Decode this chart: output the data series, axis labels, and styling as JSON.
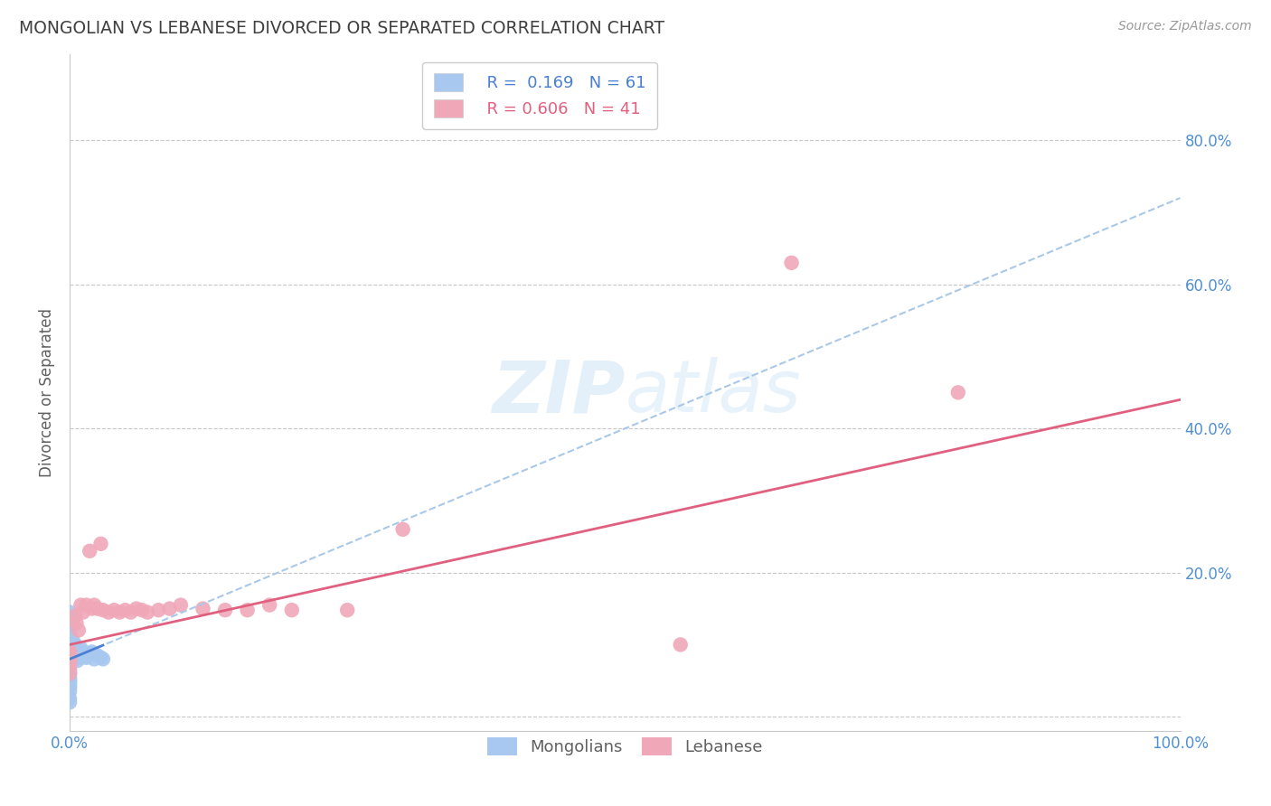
{
  "title": "MONGOLIAN VS LEBANESE DIVORCED OR SEPARATED CORRELATION CHART",
  "source": "Source: ZipAtlas.com",
  "ylabel": "Divorced or Separated",
  "xlim": [
    0.0,
    1.0
  ],
  "ylim": [
    -0.02,
    0.92
  ],
  "xticks": [
    0.0,
    0.2,
    0.4,
    0.6,
    0.8,
    1.0
  ],
  "yticks": [
    0.0,
    0.2,
    0.4,
    0.6,
    0.8
  ],
  "xticklabels": [
    "0.0%",
    "",
    "",
    "",
    "",
    "100.0%"
  ],
  "yticklabels_right": [
    "",
    "20.0%",
    "40.0%",
    "60.0%",
    "80.0%"
  ],
  "watermark": "ZIPatlas",
  "legend_r1": "R =  0.169",
  "legend_n1": "N = 61",
  "legend_r2": "R = 0.606",
  "legend_n2": "N = 41",
  "color_mongolian": "#a8c8f0",
  "color_lebanese": "#f0a8b8",
  "color_line_mongolian": "#4a7fd4",
  "color_line_lebanese": "#e06080",
  "color_dashed": "#aac8e8",
  "background_color": "#ffffff",
  "grid_color": "#c8c8c8",
  "title_color": "#404040",
  "axis_tick_color": "#5090d0",
  "mongolian_x": [
    0.0,
    0.0,
    0.0,
    0.0,
    0.0,
    0.0,
    0.0,
    0.0,
    0.0,
    0.0,
    0.0,
    0.0,
    0.0,
    0.0,
    0.0,
    0.0,
    0.0,
    0.0,
    0.0,
    0.0,
    0.0,
    0.0,
    0.0,
    0.0,
    0.0,
    0.0,
    0.0,
    0.0,
    0.0,
    0.0,
    0.0,
    0.0,
    0.0,
    0.0,
    0.0,
    0.003,
    0.003,
    0.004,
    0.004,
    0.005,
    0.005,
    0.006,
    0.006,
    0.007,
    0.008,
    0.009,
    0.01,
    0.01,
    0.011,
    0.012,
    0.013,
    0.014,
    0.015,
    0.016,
    0.018,
    0.02,
    0.022,
    0.025,
    0.028,
    0.03,
    0.0
  ],
  "mongolian_y": [
    0.145,
    0.14,
    0.13,
    0.125,
    0.12,
    0.115,
    0.11,
    0.108,
    0.105,
    0.103,
    0.1,
    0.098,
    0.095,
    0.093,
    0.09,
    0.088,
    0.085,
    0.083,
    0.08,
    0.078,
    0.075,
    0.073,
    0.07,
    0.065,
    0.062,
    0.06,
    0.055,
    0.052,
    0.05,
    0.048,
    0.045,
    0.042,
    0.04,
    0.035,
    0.025,
    0.105,
    0.095,
    0.09,
    0.085,
    0.1,
    0.092,
    0.088,
    0.082,
    0.078,
    0.088,
    0.082,
    0.095,
    0.088,
    0.09,
    0.085,
    0.088,
    0.085,
    0.082,
    0.085,
    0.088,
    0.09,
    0.08,
    0.085,
    0.082,
    0.08,
    0.02
  ],
  "lebanese_x": [
    0.0,
    0.0,
    0.0,
    0.0,
    0.0,
    0.0,
    0.0,
    0.0,
    0.005,
    0.006,
    0.008,
    0.01,
    0.012,
    0.015,
    0.018,
    0.02,
    0.022,
    0.025,
    0.028,
    0.03,
    0.035,
    0.04,
    0.045,
    0.05,
    0.055,
    0.06,
    0.065,
    0.07,
    0.08,
    0.09,
    0.1,
    0.12,
    0.14,
    0.16,
    0.18,
    0.2,
    0.25,
    0.3,
    0.55,
    0.65,
    0.8
  ],
  "lebanese_y": [
    0.09,
    0.088,
    0.085,
    0.082,
    0.08,
    0.075,
    0.07,
    0.06,
    0.14,
    0.13,
    0.12,
    0.155,
    0.145,
    0.155,
    0.23,
    0.15,
    0.155,
    0.15,
    0.24,
    0.148,
    0.145,
    0.148,
    0.145,
    0.148,
    0.145,
    0.15,
    0.148,
    0.145,
    0.148,
    0.15,
    0.155,
    0.15,
    0.148,
    0.148,
    0.155,
    0.148,
    0.148,
    0.26,
    0.1,
    0.63,
    0.45
  ]
}
